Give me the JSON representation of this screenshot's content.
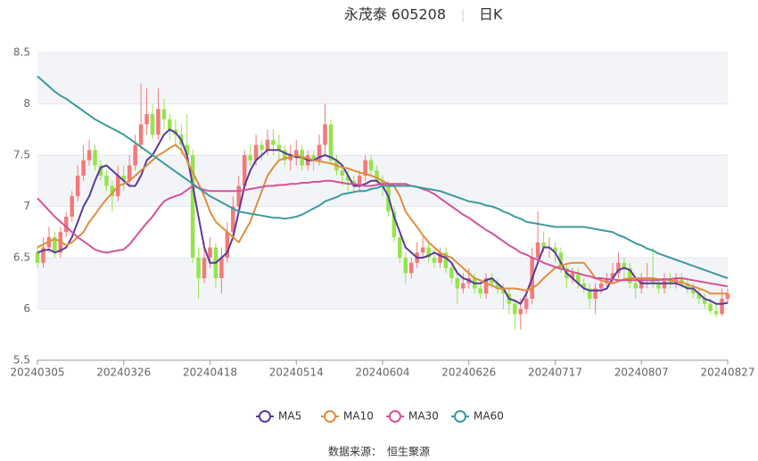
{
  "chart_data": {
    "type": "candlestick",
    "title": "永茂泰 605208",
    "subtitle": "日K",
    "source_label": "数据来源：",
    "source": "恒生聚源",
    "categories": [
      "20240305",
      null,
      null,
      null,
      null,
      null,
      null,
      null,
      null,
      null,
      null,
      null,
      null,
      null,
      null,
      "20240326",
      null,
      null,
      null,
      null,
      null,
      null,
      null,
      null,
      null,
      null,
      null,
      null,
      null,
      null,
      "20240418",
      null,
      null,
      null,
      null,
      null,
      null,
      null,
      null,
      null,
      null,
      null,
      null,
      null,
      null,
      "20240514",
      null,
      null,
      null,
      null,
      null,
      null,
      null,
      null,
      null,
      null,
      null,
      null,
      null,
      null,
      "20240604",
      null,
      null,
      null,
      null,
      null,
      null,
      null,
      null,
      null,
      null,
      null,
      null,
      null,
      null,
      "20240626",
      null,
      null,
      null,
      null,
      null,
      null,
      null,
      null,
      null,
      null,
      null,
      null,
      null,
      null,
      "20240717",
      null,
      null,
      null,
      null,
      null,
      null,
      null,
      null,
      null,
      null,
      null,
      null,
      null,
      null,
      "20240807",
      null,
      null,
      null,
      null,
      null,
      null,
      null,
      null,
      null,
      null,
      null,
      null,
      null,
      null,
      "20240827"
    ],
    "candles": [
      [
        6.55,
        6.45,
        6.4,
        6.6
      ],
      [
        6.45,
        6.6,
        6.4,
        6.7
      ],
      [
        6.6,
        6.7,
        6.55,
        6.8
      ],
      [
        6.7,
        6.55,
        6.5,
        6.75
      ],
      [
        6.55,
        6.75,
        6.5,
        6.8
      ],
      [
        6.75,
        6.9,
        6.7,
        6.95
      ],
      [
        6.9,
        7.1,
        6.85,
        7.15
      ],
      [
        7.1,
        7.3,
        7.05,
        7.4
      ],
      [
        7.3,
        7.45,
        7.25,
        7.6
      ],
      [
        7.45,
        7.55,
        7.4,
        7.65
      ],
      [
        7.55,
        7.4,
        7.35,
        7.6
      ],
      [
        7.4,
        7.3,
        7.25,
        7.45
      ],
      [
        7.3,
        7.2,
        7.15,
        7.35
      ],
      [
        7.2,
        7.1,
        6.95,
        7.25
      ],
      [
        7.1,
        7.3,
        7.05,
        7.4
      ],
      [
        7.3,
        7.25,
        7.15,
        7.4
      ],
      [
        7.25,
        7.4,
        7.2,
        7.5
      ],
      [
        7.4,
        7.6,
        7.35,
        7.7
      ],
      [
        7.6,
        7.8,
        7.55,
        8.2
      ],
      [
        7.8,
        7.9,
        7.7,
        8.15
      ],
      [
        7.9,
        7.7,
        7.65,
        8.0
      ],
      [
        7.7,
        7.95,
        7.65,
        8.15
      ],
      [
        7.95,
        7.85,
        7.75,
        8.05
      ],
      [
        7.85,
        7.75,
        7.65,
        7.9
      ],
      [
        7.75,
        7.7,
        7.6,
        7.85
      ],
      [
        7.7,
        7.6,
        7.5,
        7.8
      ],
      [
        7.6,
        7.5,
        7.4,
        7.9
      ],
      [
        7.5,
        6.5,
        6.45,
        7.55
      ],
      [
        6.5,
        6.3,
        6.1,
        6.6
      ],
      [
        6.3,
        6.5,
        6.25,
        6.65
      ],
      [
        6.5,
        6.6,
        6.4,
        6.7
      ],
      [
        6.6,
        6.3,
        6.2,
        6.65
      ],
      [
        6.3,
        6.5,
        6.15,
        6.6
      ],
      [
        6.5,
        6.75,
        6.45,
        6.85
      ],
      [
        6.75,
        7.0,
        6.7,
        7.1
      ],
      [
        7.0,
        7.2,
        6.95,
        7.3
      ],
      [
        7.2,
        7.5,
        7.15,
        7.55
      ],
      [
        7.5,
        7.45,
        7.4,
        7.6
      ],
      [
        7.45,
        7.6,
        7.4,
        7.7
      ],
      [
        7.6,
        7.55,
        7.45,
        7.65
      ],
      [
        7.55,
        7.65,
        7.5,
        7.75
      ],
      [
        7.65,
        7.6,
        7.5,
        7.75
      ],
      [
        7.6,
        7.55,
        7.45,
        7.7
      ],
      [
        7.55,
        7.45,
        7.4,
        7.6
      ],
      [
        7.45,
        7.5,
        7.35,
        7.6
      ],
      [
        7.5,
        7.55,
        7.4,
        7.65
      ],
      [
        7.55,
        7.4,
        7.35,
        7.6
      ],
      [
        7.4,
        7.5,
        7.35,
        7.55
      ],
      [
        7.5,
        7.45,
        7.35,
        7.55
      ],
      [
        7.45,
        7.6,
        7.4,
        7.7
      ],
      [
        7.6,
        7.8,
        7.5,
        8.0
      ],
      [
        7.8,
        7.45,
        7.4,
        7.85
      ],
      [
        7.45,
        7.35,
        7.3,
        7.5
      ],
      [
        7.35,
        7.3,
        7.2,
        7.4
      ],
      [
        7.3,
        7.25,
        7.15,
        7.35
      ],
      [
        7.25,
        7.2,
        7.15,
        7.3
      ],
      [
        7.2,
        7.3,
        7.15,
        7.35
      ],
      [
        7.3,
        7.45,
        7.25,
        7.5
      ],
      [
        7.45,
        7.35,
        7.3,
        7.5
      ],
      [
        7.35,
        7.25,
        7.2,
        7.4
      ],
      [
        7.25,
        7.2,
        7.1,
        7.3
      ],
      [
        7.2,
        6.95,
        6.9,
        7.25
      ],
      [
        6.95,
        6.7,
        6.65,
        7.0
      ],
      [
        6.7,
        6.5,
        6.45,
        6.75
      ],
      [
        6.5,
        6.35,
        6.25,
        6.55
      ],
      [
        6.35,
        6.45,
        6.3,
        6.5
      ],
      [
        6.45,
        6.55,
        6.4,
        6.65
      ],
      [
        6.55,
        6.6,
        6.5,
        6.7
      ],
      [
        6.6,
        6.5,
        6.45,
        6.65
      ],
      [
        6.5,
        6.45,
        6.4,
        6.6
      ],
      [
        6.45,
        6.55,
        6.4,
        6.6
      ],
      [
        6.55,
        6.4,
        6.35,
        6.6
      ],
      [
        6.4,
        6.3,
        6.25,
        6.45
      ],
      [
        6.3,
        6.2,
        6.05,
        6.35
      ],
      [
        6.2,
        6.25,
        6.15,
        6.35
      ],
      [
        6.25,
        6.3,
        6.2,
        6.4
      ],
      [
        6.3,
        6.2,
        6.15,
        6.35
      ],
      [
        6.2,
        6.15,
        6.1,
        6.25
      ],
      [
        6.15,
        6.3,
        6.1,
        6.35
      ],
      [
        6.3,
        6.25,
        6.2,
        6.35
      ],
      [
        6.25,
        6.2,
        6.15,
        6.3
      ],
      [
        6.2,
        6.15,
        6.0,
        6.25
      ],
      [
        6.15,
        6.05,
        5.95,
        6.2
      ],
      [
        6.05,
        5.95,
        5.8,
        6.1
      ],
      [
        5.95,
        6.0,
        5.8,
        6.1
      ],
      [
        6.0,
        6.1,
        5.95,
        6.2
      ],
      [
        6.1,
        6.5,
        6.05,
        6.6
      ],
      [
        6.5,
        6.65,
        6.45,
        6.95
      ],
      [
        6.65,
        6.6,
        6.55,
        6.75
      ],
      [
        6.6,
        6.6,
        6.5,
        6.7
      ],
      [
        6.6,
        6.55,
        6.45,
        6.65
      ],
      [
        6.55,
        6.4,
        6.35,
        6.6
      ],
      [
        6.4,
        6.3,
        6.2,
        6.45
      ],
      [
        6.3,
        6.35,
        6.25,
        6.4
      ],
      [
        6.35,
        6.25,
        6.2,
        6.4
      ],
      [
        6.25,
        6.2,
        6.15,
        6.3
      ],
      [
        6.2,
        6.1,
        6.0,
        6.25
      ],
      [
        6.1,
        6.2,
        5.95,
        6.25
      ],
      [
        6.2,
        6.25,
        6.15,
        6.3
      ],
      [
        6.25,
        6.3,
        6.2,
        6.35
      ],
      [
        6.3,
        6.35,
        6.25,
        6.45
      ],
      [
        6.35,
        6.45,
        6.3,
        6.55
      ],
      [
        6.45,
        6.4,
        6.3,
        6.5
      ],
      [
        6.4,
        6.25,
        6.2,
        6.45
      ],
      [
        6.25,
        6.2,
        6.1,
        6.3
      ],
      [
        6.2,
        6.3,
        6.15,
        6.35
      ],
      [
        6.3,
        6.3,
        6.2,
        6.45
      ],
      [
        6.3,
        6.25,
        6.2,
        6.6
      ],
      [
        6.25,
        6.2,
        6.15,
        6.3
      ],
      [
        6.2,
        6.3,
        6.15,
        6.35
      ],
      [
        6.3,
        6.25,
        6.2,
        6.35
      ],
      [
        6.25,
        6.3,
        6.2,
        6.35
      ],
      [
        6.3,
        6.25,
        6.2,
        6.35
      ],
      [
        6.25,
        6.2,
        6.15,
        6.3
      ],
      [
        6.2,
        6.15,
        6.1,
        6.25
      ],
      [
        6.15,
        6.1,
        6.05,
        6.2
      ],
      [
        6.1,
        6.05,
        6.0,
        6.15
      ],
      [
        6.05,
        5.98,
        5.95,
        6.1
      ],
      [
        5.98,
        5.95,
        5.92,
        6.05
      ],
      [
        5.95,
        6.1,
        5.93,
        6.2
      ],
      [
        6.1,
        6.15,
        6.05,
        6.2
      ]
    ],
    "up_color": "#f27a7a",
    "down_color": "#93e54b",
    "series": [
      {
        "name": "MA5",
        "color": "#5b3a9b",
        "values": [
          6.55,
          6.57,
          6.58,
          6.55,
          6.57,
          6.6,
          6.7,
          6.85,
          7.0,
          7.1,
          7.25,
          7.38,
          7.4,
          7.35,
          7.3,
          7.25,
          7.2,
          7.2,
          7.3,
          7.45,
          7.5,
          7.6,
          7.7,
          7.75,
          7.72,
          7.65,
          7.5,
          7.2,
          6.9,
          6.6,
          6.45,
          6.45,
          6.5,
          6.55,
          6.7,
          6.95,
          7.2,
          7.35,
          7.45,
          7.5,
          7.55,
          7.55,
          7.55,
          7.52,
          7.5,
          7.48,
          7.48,
          7.45,
          7.45,
          7.48,
          7.5,
          7.48,
          7.45,
          7.4,
          7.3,
          7.2,
          7.2,
          7.22,
          7.25,
          7.25,
          7.2,
          7.1,
          6.9,
          6.75,
          6.6,
          6.55,
          6.5,
          6.5,
          6.52,
          6.55,
          6.52,
          6.5,
          6.45,
          6.35,
          6.3,
          6.28,
          6.25,
          6.25,
          6.28,
          6.3,
          6.25,
          6.2,
          6.1,
          6.08,
          6.05,
          6.15,
          6.3,
          6.45,
          6.6,
          6.6,
          6.55,
          6.45,
          6.35,
          6.3,
          6.25,
          6.2,
          6.18,
          6.18,
          6.18,
          6.2,
          6.3,
          6.38,
          6.4,
          6.38,
          6.3,
          6.25,
          6.25,
          6.25,
          6.25,
          6.25,
          6.25,
          6.25,
          6.23,
          6.2,
          6.2,
          6.15,
          6.1,
          6.08,
          6.05,
          6.05,
          6.06
        ]
      },
      {
        "name": "MA10",
        "color": "#e08d3c",
        "values": [
          6.6,
          6.63,
          6.66,
          6.68,
          6.66,
          6.62,
          6.65,
          6.7,
          6.75,
          6.85,
          6.92,
          7.0,
          7.07,
          7.13,
          7.2,
          7.22,
          7.25,
          7.3,
          7.35,
          7.4,
          7.45,
          7.5,
          7.53,
          7.57,
          7.6,
          7.55,
          7.45,
          7.33,
          7.22,
          7.1,
          6.95,
          6.85,
          6.8,
          6.75,
          6.7,
          6.65,
          6.75,
          6.85,
          7.0,
          7.15,
          7.3,
          7.38,
          7.45,
          7.47,
          7.48,
          7.5,
          7.48,
          7.47,
          7.45,
          7.44,
          7.43,
          7.42,
          7.4,
          7.38,
          7.37,
          7.35,
          7.33,
          7.32,
          7.3,
          7.28,
          7.25,
          7.22,
          7.2,
          7.1,
          6.95,
          6.87,
          6.8,
          6.72,
          6.65,
          6.6,
          6.55,
          6.52,
          6.5,
          6.45,
          6.4,
          6.35,
          6.3,
          6.28,
          6.25,
          6.23,
          6.2,
          6.2,
          6.2,
          6.2,
          6.19,
          6.18,
          6.2,
          6.24,
          6.3,
          6.35,
          6.4,
          6.42,
          6.44,
          6.45,
          6.45,
          6.45,
          6.38,
          6.3,
          6.28,
          6.26,
          6.25,
          6.27,
          6.29,
          6.3,
          6.3,
          6.3,
          6.3,
          6.3,
          6.29,
          6.29,
          6.28,
          6.27,
          6.26,
          6.24,
          6.22,
          6.2,
          6.18,
          6.15,
          6.15,
          6.15,
          6.15
        ]
      },
      {
        "name": "MA30",
        "color": "#d4529b",
        "values": [
          7.08,
          7.02,
          6.96,
          6.9,
          6.85,
          6.8,
          6.75,
          6.7,
          6.66,
          6.62,
          6.58,
          6.56,
          6.55,
          6.56,
          6.57,
          6.58,
          6.63,
          6.7,
          6.77,
          6.84,
          6.9,
          6.98,
          7.05,
          7.08,
          7.1,
          7.12,
          7.16,
          7.2,
          7.18,
          7.16,
          7.15,
          7.15,
          7.15,
          7.15,
          7.15,
          7.15,
          7.16,
          7.17,
          7.18,
          7.19,
          7.2,
          7.2,
          7.21,
          7.21,
          7.22,
          7.22,
          7.23,
          7.23,
          7.24,
          7.24,
          7.25,
          7.25,
          7.24,
          7.23,
          7.22,
          7.22,
          7.21,
          7.2,
          7.2,
          7.21,
          7.22,
          7.22,
          7.22,
          7.22,
          7.22,
          7.2,
          7.19,
          7.17,
          7.15,
          7.12,
          7.08,
          7.04,
          7.0,
          6.96,
          6.92,
          6.89,
          6.85,
          6.81,
          6.77,
          6.74,
          6.7,
          6.66,
          6.62,
          6.59,
          6.55,
          6.53,
          6.5,
          6.48,
          6.45,
          6.43,
          6.41,
          6.39,
          6.38,
          6.36,
          6.35,
          6.33,
          6.32,
          6.3,
          6.3,
          6.29,
          6.29,
          6.28,
          6.28,
          6.28,
          6.28,
          6.28,
          6.28,
          6.28,
          6.28,
          6.29,
          6.29,
          6.3,
          6.3,
          6.29,
          6.28,
          6.27,
          6.26,
          6.25,
          6.24,
          6.23,
          6.22
        ]
      },
      {
        "name": "MA60",
        "color": "#3b9a9c",
        "values": [
          8.27,
          8.22,
          8.17,
          8.12,
          8.08,
          8.05,
          8.01,
          7.97,
          7.93,
          7.89,
          7.85,
          7.82,
          7.79,
          7.76,
          7.73,
          7.7,
          7.66,
          7.62,
          7.58,
          7.54,
          7.5,
          7.46,
          7.42,
          7.38,
          7.34,
          7.3,
          7.26,
          7.22,
          7.18,
          7.14,
          7.1,
          7.07,
          7.04,
          7.01,
          6.98,
          6.95,
          6.94,
          6.93,
          6.92,
          6.91,
          6.9,
          6.89,
          6.89,
          6.88,
          6.89,
          6.9,
          6.92,
          6.95,
          6.98,
          7.01,
          7.05,
          7.07,
          7.09,
          7.12,
          7.13,
          7.14,
          7.15,
          7.15,
          7.17,
          7.18,
          7.2,
          7.2,
          7.2,
          7.2,
          7.2,
          7.2,
          7.19,
          7.18,
          7.17,
          7.16,
          7.15,
          7.13,
          7.11,
          7.09,
          7.07,
          7.05,
          7.04,
          7.03,
          7.01,
          7.0,
          6.98,
          6.95,
          6.93,
          6.9,
          6.88,
          6.85,
          6.84,
          6.83,
          6.82,
          6.81,
          6.8,
          6.8,
          6.8,
          6.8,
          6.8,
          6.8,
          6.79,
          6.78,
          6.77,
          6.76,
          6.75,
          6.72,
          6.7,
          6.67,
          6.64,
          6.62,
          6.59,
          6.57,
          6.54,
          6.52,
          6.5,
          6.48,
          6.46,
          6.44,
          6.42,
          6.4,
          6.38,
          6.36,
          6.34,
          6.32,
          6.3
        ]
      }
    ],
    "ylim": [
      5.5,
      8.5
    ],
    "yticks": [
      5.5,
      6,
      6.5,
      7,
      7.5,
      8,
      8.5
    ],
    "grid": true,
    "bands": true
  }
}
